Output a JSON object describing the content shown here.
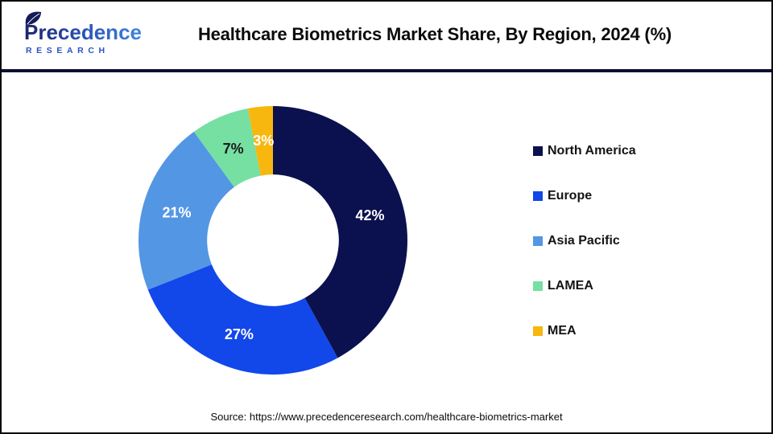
{
  "header": {
    "title": "Healthcare Biometrics Market Share, By Region, 2024 (%)",
    "logo": {
      "name": "Precedence",
      "subname": "RESEARCH"
    }
  },
  "chart_data": {
    "type": "pie",
    "subtype": "doughnut",
    "title": "Healthcare Biometrics Market Share, By Region, 2024 (%)",
    "categories": [
      "North America",
      "Europe",
      "Asia Pacific",
      "LAMEA",
      "MEA"
    ],
    "values": [
      42,
      27,
      21,
      7,
      3
    ],
    "unit": "%",
    "data_labels": [
      "42%",
      "27%",
      "21%",
      "7%",
      "3%"
    ],
    "colors": [
      "#0B114E",
      "#1247EA",
      "#5396E4",
      "#76DFA2",
      "#F7B70F"
    ],
    "data_label_colors": [
      "#FFFFFF",
      "#FFFFFF",
      "#FFFFFF",
      "#1B1B1B",
      "#FFFFFF"
    ],
    "start_angle_deg": 0,
    "direction": "clockwise",
    "inner_radius_ratio": 0.49,
    "legend_position": "right"
  },
  "footer": {
    "source": "Source: https://www.precedenceresearch.com/healthcare-biometrics-market"
  },
  "style": {
    "divider_color": "#0D1033",
    "logo_gradient_start": "#1B2668",
    "logo_gradient_end": "#3F86DC",
    "logo_subname_color": "#2A52C4",
    "leaf_color": "#131B57"
  }
}
